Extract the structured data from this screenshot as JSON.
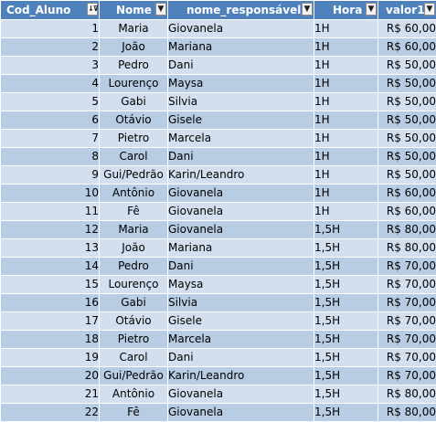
{
  "headers": {
    "cod_aluno": "Cod_Aluno",
    "nome": "Nome",
    "nome_responsavel": "nome_responsável",
    "hora": "Hora",
    "valor": "valor1"
  },
  "filter_icons": {
    "cod_aluno": "sort-ascending-filter-icon",
    "others": "dropdown-arrow-icon"
  },
  "colors": {
    "header_bg": "#4f81bd",
    "row_light": "#d3dfee",
    "row_dark": "#b8cce4"
  },
  "rows": [
    {
      "cod": "1",
      "nome": "Maria",
      "resp": "Giovanela",
      "hora": "1H",
      "valor": "R$ 60,00"
    },
    {
      "cod": "2",
      "nome": "João",
      "resp": "Mariana",
      "hora": "1H",
      "valor": "R$ 60,00"
    },
    {
      "cod": "3",
      "nome": "Pedro",
      "resp": "Dani",
      "hora": "1H",
      "valor": "R$ 50,00"
    },
    {
      "cod": "4",
      "nome": "Lourenço",
      "resp": "Maysa",
      "hora": "1H",
      "valor": "R$ 50,00"
    },
    {
      "cod": "5",
      "nome": "Gabi",
      "resp": "Silvia",
      "hora": "1H",
      "valor": "R$ 50,00"
    },
    {
      "cod": "6",
      "nome": "Otávio",
      "resp": "Gisele",
      "hora": "1H",
      "valor": "R$ 50,00"
    },
    {
      "cod": "7",
      "nome": "Pietro",
      "resp": "Marcela",
      "hora": "1H",
      "valor": "R$ 50,00"
    },
    {
      "cod": "8",
      "nome": "Carol",
      "resp": "Dani",
      "hora": "1H",
      "valor": "R$ 50,00"
    },
    {
      "cod": "9",
      "nome": "Gui/Pedrão",
      "resp": "Karin/Leandro",
      "hora": "1H",
      "valor": "R$ 50,00"
    },
    {
      "cod": "10",
      "nome": "Antônio",
      "resp": "Giovanela",
      "hora": "1H",
      "valor": "R$ 60,00"
    },
    {
      "cod": "11",
      "nome": "Fê",
      "resp": "Giovanela",
      "hora": "1H",
      "valor": "R$ 60,00"
    },
    {
      "cod": "12",
      "nome": "Maria",
      "resp": "Giovanela",
      "hora": "1,5H",
      "valor": "R$ 80,00"
    },
    {
      "cod": "13",
      "nome": "João",
      "resp": "Mariana",
      "hora": "1,5H",
      "valor": "R$ 80,00"
    },
    {
      "cod": "14",
      "nome": "Pedro",
      "resp": "Dani",
      "hora": "1,5H",
      "valor": "R$ 70,00"
    },
    {
      "cod": "15",
      "nome": "Lourenço",
      "resp": "Maysa",
      "hora": "1,5H",
      "valor": "R$ 70,00"
    },
    {
      "cod": "16",
      "nome": "Gabi",
      "resp": "Silvia",
      "hora": "1,5H",
      "valor": "R$ 70,00"
    },
    {
      "cod": "17",
      "nome": "Otávio",
      "resp": "Gisele",
      "hora": "1,5H",
      "valor": "R$ 70,00"
    },
    {
      "cod": "18",
      "nome": "Pietro",
      "resp": "Marcela",
      "hora": "1,5H",
      "valor": "R$ 70,00"
    },
    {
      "cod": "19",
      "nome": "Carol",
      "resp": "Dani",
      "hora": "1,5H",
      "valor": "R$ 70,00"
    },
    {
      "cod": "20",
      "nome": "Gui/Pedrão",
      "resp": "Karin/Leandro",
      "hora": "1,5H",
      "valor": "R$ 70,00"
    },
    {
      "cod": "21",
      "nome": "Antônio",
      "resp": "Giovanela",
      "hora": "1,5H",
      "valor": "R$ 80,00"
    },
    {
      "cod": "22",
      "nome": "Fê",
      "resp": "Giovanela",
      "hora": "1,5H",
      "valor": "R$ 80,00"
    }
  ]
}
